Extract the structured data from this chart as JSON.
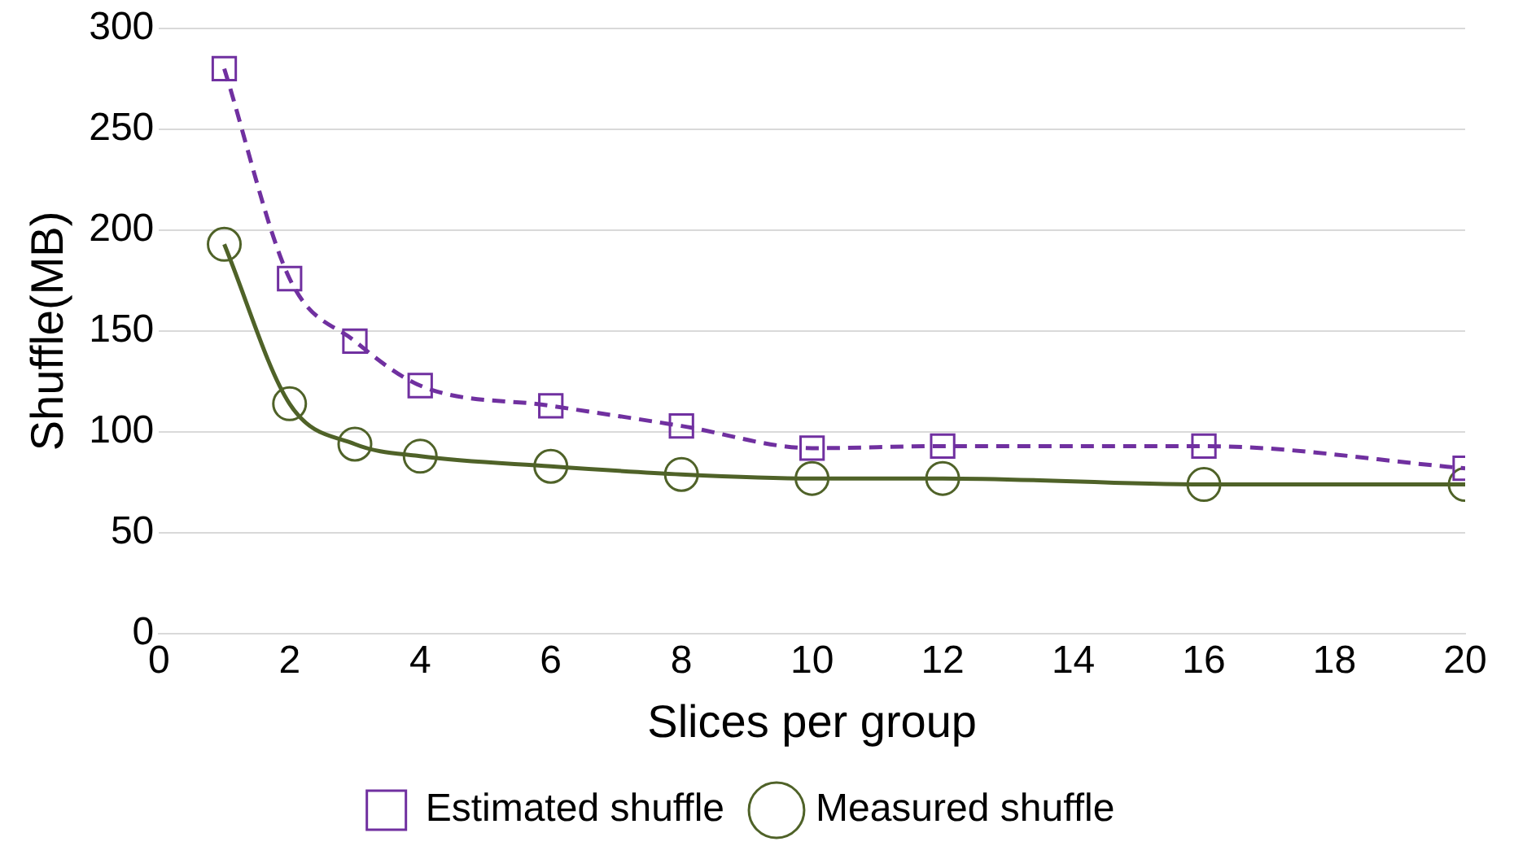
{
  "chart_data": {
    "type": "line",
    "xlabel": "Slices per group",
    "ylabel": "Shuffle(MB)",
    "xlim": [
      0,
      20
    ],
    "xticks": [
      0,
      2,
      4,
      6,
      8,
      10,
      12,
      14,
      16,
      18,
      20
    ],
    "ylim": [
      0,
      300
    ],
    "yticks": [
      0,
      50,
      100,
      150,
      200,
      250,
      300
    ],
    "grid": "y",
    "legend": "bottom",
    "x": [
      1,
      2,
      3,
      4,
      6,
      8,
      10,
      12,
      16,
      20
    ],
    "series": [
      {
        "name": "Estimated shuffle",
        "color": "#7030a0",
        "marker": "square",
        "line_style": "dashed",
        "values": [
          280,
          176,
          145,
          123,
          113,
          103,
          92,
          93,
          93,
          82
        ]
      },
      {
        "name": "Measured shuffle",
        "color": "#4f6228",
        "marker": "circle",
        "line_style": "solid",
        "values": [
          193,
          114,
          94,
          88,
          83,
          79,
          77,
          77,
          74,
          74
        ]
      }
    ]
  }
}
